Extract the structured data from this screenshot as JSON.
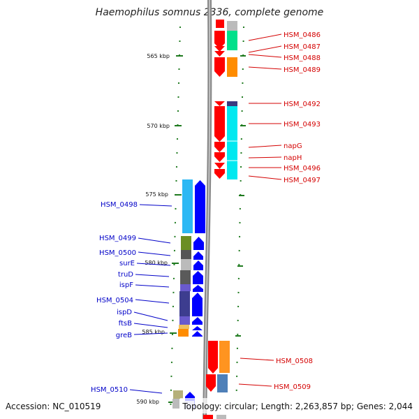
{
  "title": "Haemophilus somnus 2336, complete genome",
  "accession": "Accession: NC_010519",
  "summary": "Topology: circular; Length: 2,263,857 bp; Genes: 2,044",
  "colors": {
    "forward_arrow": "#ff0000",
    "reverse_arrow": "#0000ff",
    "forward_label": "#d40000",
    "reverse_label": "#0000c8",
    "backbone": "#808080",
    "tick": "#1f7a1f"
  },
  "scale_labels": [
    "565 kbp",
    "570 kbp",
    "575 kbp",
    "580 kbp",
    "585 kbp",
    "590 kbp"
  ],
  "forward_genes": [
    "HSM_0486",
    "HSM_0487",
    "HSM_0488",
    "HSM_0489",
    "HSM_0492",
    "HSM_0493",
    "napG",
    "napH",
    "HSM_0496",
    "HSM_0497",
    "HSM_0508",
    "HSM_0509"
  ],
  "reverse_genes": [
    "HSM_0498",
    "HSM_0499",
    "HSM_0500",
    "surE",
    "truD",
    "ispF",
    "HSM_0504",
    "ispD",
    "ftsB",
    "greB",
    "HSM_0510"
  ]
}
